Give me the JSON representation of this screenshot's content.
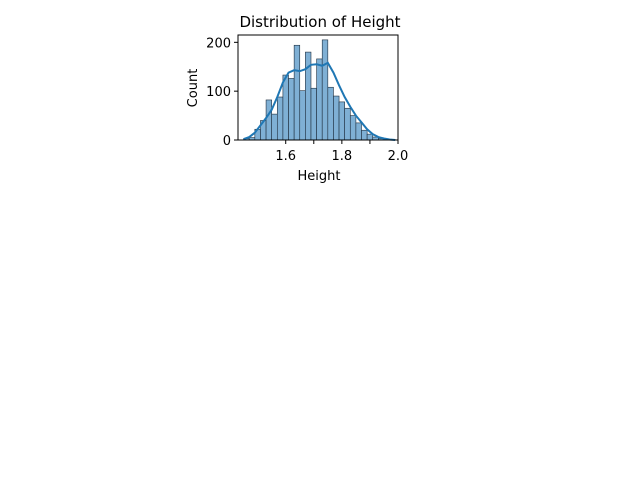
{
  "chart_data": {
    "type": "bar",
    "title": "Distribution of Height",
    "xlabel": "Height",
    "ylabel": "Count",
    "xlim": [
      1.43,
      2.0
    ],
    "ylim": [
      0,
      215
    ],
    "x_ticks": [
      1.6,
      1.7,
      1.8,
      1.9,
      2.0
    ],
    "x_tick_labels": [
      "1.6",
      "1.8",
      "2.0"
    ],
    "x_tick_label_values": [
      1.6,
      1.8,
      2.0
    ],
    "y_ticks": [
      0,
      100,
      200
    ],
    "y_tick_labels": [
      "0",
      "100",
      "200"
    ],
    "bins": [
      [
        1.45,
        1.47
      ],
      [
        1.47,
        1.49
      ],
      [
        1.49,
        1.51
      ],
      [
        1.51,
        1.53
      ],
      [
        1.53,
        1.55
      ],
      [
        1.55,
        1.57
      ],
      [
        1.57,
        1.59
      ],
      [
        1.59,
        1.61
      ],
      [
        1.61,
        1.63
      ],
      [
        1.63,
        1.65
      ],
      [
        1.65,
        1.67
      ],
      [
        1.67,
        1.69
      ],
      [
        1.69,
        1.71
      ],
      [
        1.71,
        1.73
      ],
      [
        1.73,
        1.75
      ],
      [
        1.75,
        1.77
      ],
      [
        1.77,
        1.79
      ],
      [
        1.79,
        1.81
      ],
      [
        1.81,
        1.83
      ],
      [
        1.83,
        1.85
      ],
      [
        1.85,
        1.87
      ],
      [
        1.87,
        1.89
      ],
      [
        1.89,
        1.91
      ],
      [
        1.91,
        1.93
      ],
      [
        1.93,
        1.95
      ],
      [
        1.95,
        1.97
      ],
      [
        1.97,
        1.99
      ]
    ],
    "values": [
      3,
      5,
      22,
      40,
      82,
      53,
      88,
      133,
      126,
      194,
      101,
      180,
      106,
      166,
      205,
      108,
      90,
      78,
      65,
      50,
      35,
      20,
      12,
      6,
      3,
      1,
      1
    ],
    "kde": {
      "x": [
        1.45,
        1.47,
        1.49,
        1.51,
        1.53,
        1.55,
        1.57,
        1.59,
        1.61,
        1.63,
        1.65,
        1.67,
        1.69,
        1.71,
        1.73,
        1.75,
        1.77,
        1.79,
        1.81,
        1.83,
        1.85,
        1.87,
        1.89,
        1.91,
        1.93,
        1.95,
        1.97,
        1.99
      ],
      "y": [
        2,
        6,
        15,
        30,
        45,
        62,
        88,
        118,
        138,
        143,
        141,
        145,
        154,
        155,
        152,
        158,
        138,
        112,
        88,
        68,
        50,
        36,
        22,
        12,
        6,
        3,
        1,
        0
      ]
    },
    "bar_color": "#7fb0d5",
    "bar_edge_color": "#1f2f3f",
    "line_color": "#1f77b4",
    "grid": false,
    "legend": "none"
  }
}
